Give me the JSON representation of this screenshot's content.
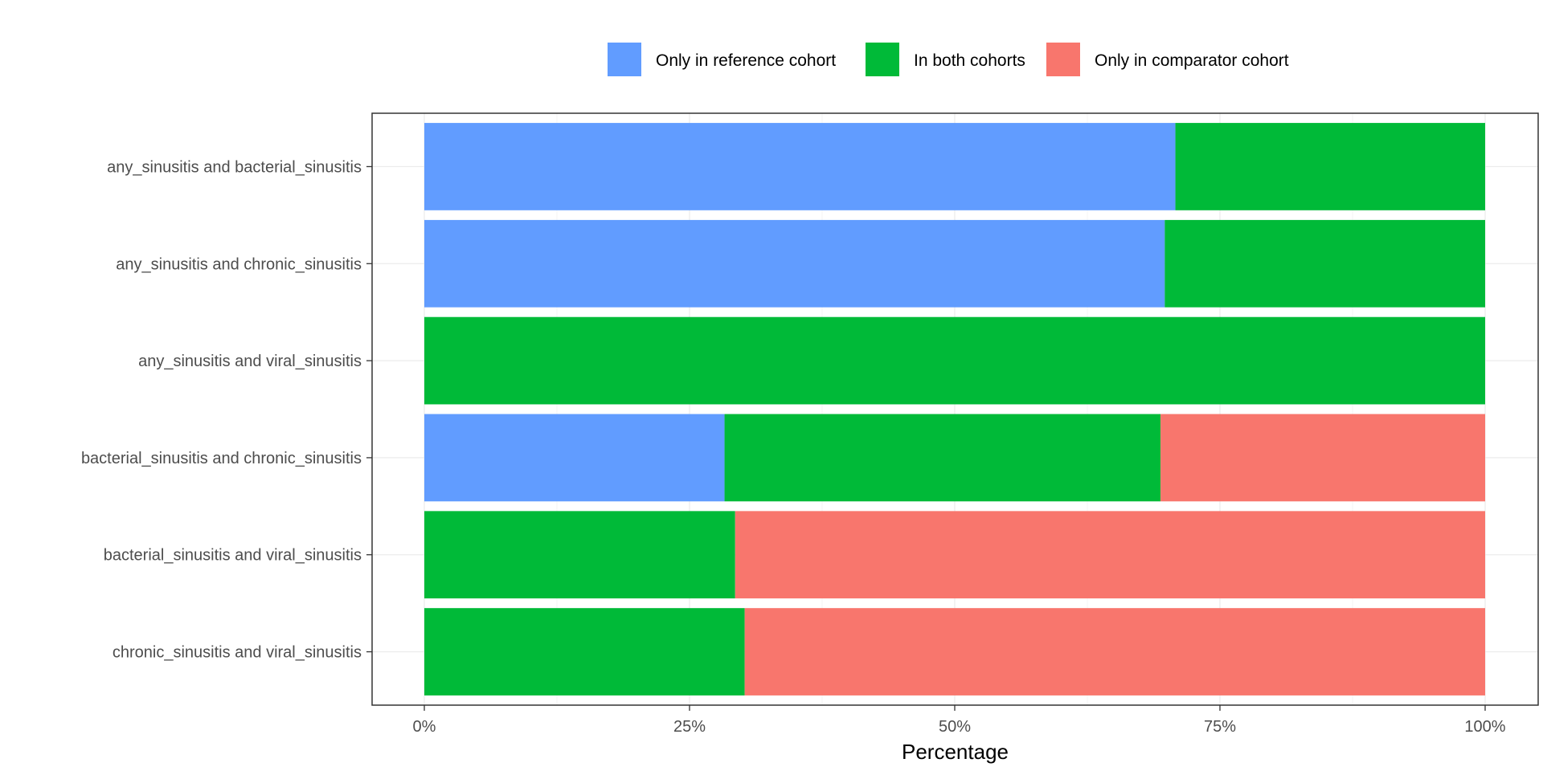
{
  "chart_data": {
    "type": "bar",
    "orientation": "horizontal",
    "stacked": true,
    "categories": [
      "any_sinusitis and bacterial_sinusitis",
      "any_sinusitis and chronic_sinusitis",
      "any_sinusitis and viral_sinusitis",
      "bacterial_sinusitis and chronic_sinusitis",
      "bacterial_sinusitis and viral_sinusitis",
      "chronic_sinusitis and viral_sinusitis"
    ],
    "series": [
      {
        "name": "Only in reference cohort",
        "color": "#619CFF",
        "values": [
          70.8,
          69.8,
          0,
          28.3,
          0,
          0
        ]
      },
      {
        "name": "In both cohorts",
        "color": "#00BA38",
        "values": [
          29.2,
          30.2,
          100,
          41.1,
          29.3,
          30.2
        ]
      },
      {
        "name": "Only in comparator cohort",
        "color": "#F8766D",
        "values": [
          0,
          0,
          0,
          30.6,
          70.7,
          69.8
        ]
      }
    ],
    "xlabel": "Percentage",
    "ylabel": "",
    "xlim": [
      0,
      100
    ],
    "x_ticks": [
      0,
      25,
      50,
      75,
      100
    ],
    "x_tick_labels": [
      "0%",
      "25%",
      "50%",
      "75%",
      "100%"
    ],
    "grid": true,
    "legend_position": "top"
  }
}
